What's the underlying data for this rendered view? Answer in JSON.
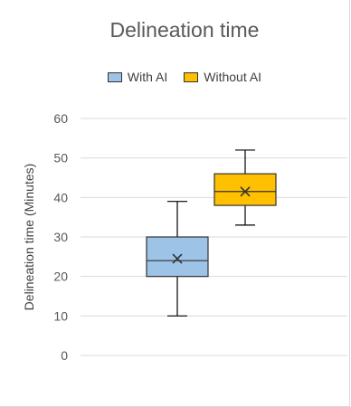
{
  "chart_data": {
    "type": "box",
    "title": "Delineation time",
    "xlabel": "",
    "ylabel": "Delineation time (Minutes)",
    "ylim": [
      0,
      60
    ],
    "yticks": [
      0,
      10,
      20,
      30,
      40,
      50,
      60
    ],
    "grid": true,
    "legend_position": "top",
    "series": [
      {
        "name": "With AI",
        "color": "#9dc3e6",
        "min": 10,
        "q1": 20,
        "median": 24,
        "q3": 30,
        "max": 39,
        "mean": 24.5
      },
      {
        "name": "Without AI",
        "color": "#ffc000",
        "min": 33,
        "q1": 38,
        "median": 41.5,
        "q3": 46,
        "max": 52,
        "mean": 41.5
      }
    ]
  }
}
